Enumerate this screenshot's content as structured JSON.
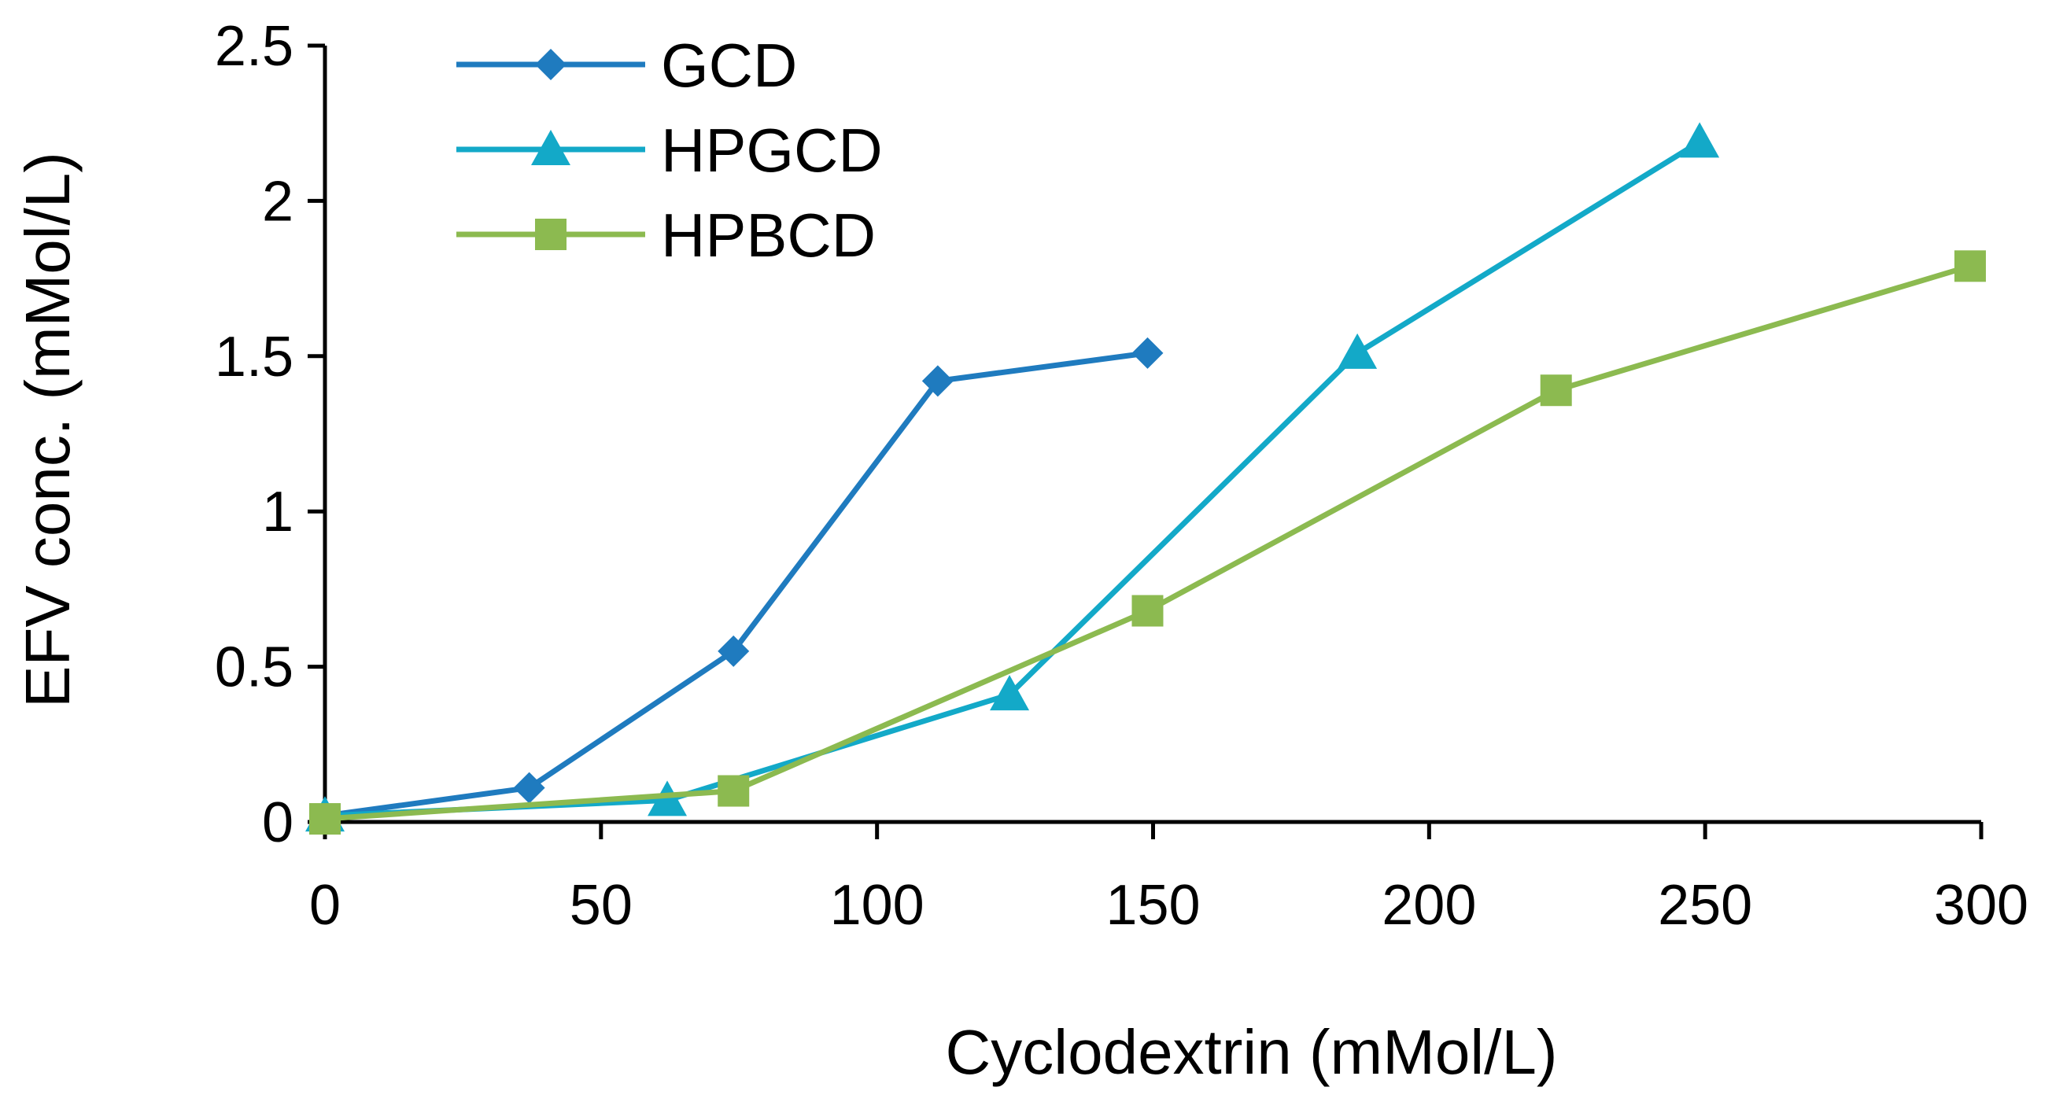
{
  "chart_data": {
    "type": "line",
    "title": "",
    "xlabel": "Cyclodextrin (mMol/L)",
    "ylabel": "EFV conc. (mMol/L)",
    "xlim": [
      0,
      300
    ],
    "ylim": [
      0,
      2.5
    ],
    "xticks": [
      0,
      50,
      100,
      150,
      200,
      250,
      300
    ],
    "yticks": [
      0,
      0.5,
      1,
      1.5,
      2,
      2.5
    ],
    "xtick_labels": [
      "0",
      "50",
      "100",
      "150",
      "200",
      "250",
      "300"
    ],
    "ytick_labels": [
      "0",
      "0.5",
      "1",
      "1.5",
      "2",
      "2.5"
    ],
    "grid": false,
    "legend_position": "top-left",
    "series": [
      {
        "name": "GCD",
        "color": "#1f7bbf",
        "marker": "diamond",
        "x": [
          0,
          37,
          74,
          111,
          149
        ],
        "y": [
          0.02,
          0.11,
          0.55,
          1.42,
          1.51
        ]
      },
      {
        "name": "HPGCD",
        "color": "#13a9c8",
        "marker": "triangle",
        "x": [
          0,
          62,
          124,
          187,
          249
        ],
        "y": [
          0.02,
          0.07,
          0.41,
          1.51,
          2.19
        ]
      },
      {
        "name": "HPBCD",
        "color": "#8cba50",
        "marker": "square",
        "x": [
          0,
          74,
          149,
          223,
          298
        ],
        "y": [
          0.01,
          0.1,
          0.68,
          1.39,
          1.79
        ]
      }
    ]
  }
}
